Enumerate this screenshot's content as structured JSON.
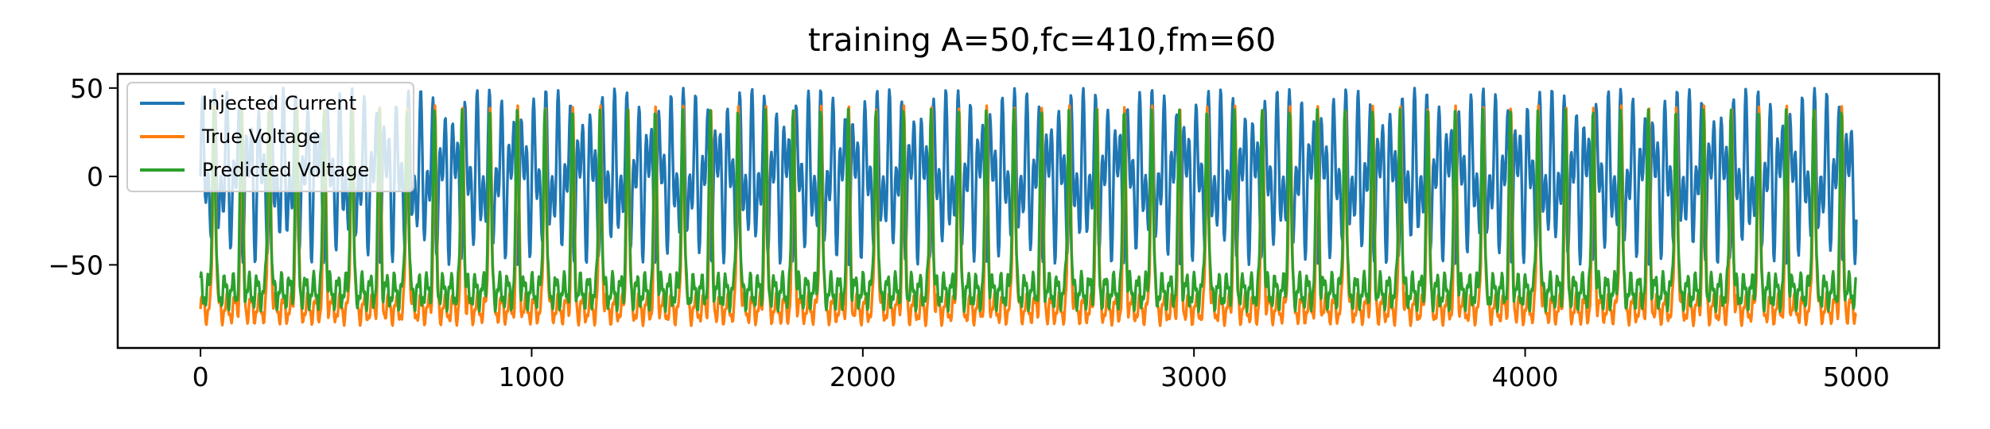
{
  "chart_data": {
    "type": "line",
    "title": "training A=50,fc=410,fm=60",
    "xlabel": "",
    "ylabel": "",
    "xlim": [
      -250,
      5250
    ],
    "ylim": [
      -97,
      58
    ],
    "xticks": [
      0,
      1000,
      2000,
      3000,
      4000,
      5000
    ],
    "xtick_labels": [
      "0",
      "1000",
      "2000",
      "3000",
      "4000",
      "5000"
    ],
    "yticks": [
      50,
      0,
      -50
    ],
    "ytick_labels": [
      "50",
      "0",
      "−50"
    ],
    "grid": false,
    "legend_position": "upper-left",
    "x_range": [
      0,
      5000
    ],
    "series": [
      {
        "name": "Injected Current",
        "color": "#1f77b4",
        "description_model": "A*sin(2*pi*fc*t)*sin(2*pi*fm*t)-style modulated oscillation",
        "amplitude": 50,
        "carrier_period_samples": 24.4,
        "envelope_period_samples": 83.3
      },
      {
        "name": "True Voltage",
        "color": "#ff7f0e",
        "baseline": -75,
        "trough": -88,
        "spike_peak": 40,
        "spike_period_samples": 83.3
      },
      {
        "name": "Predicted Voltage",
        "color": "#2ca02c",
        "baseline": -65,
        "trough": -80,
        "spike_peak": 38,
        "spike_period_samples": 83.3
      }
    ]
  }
}
